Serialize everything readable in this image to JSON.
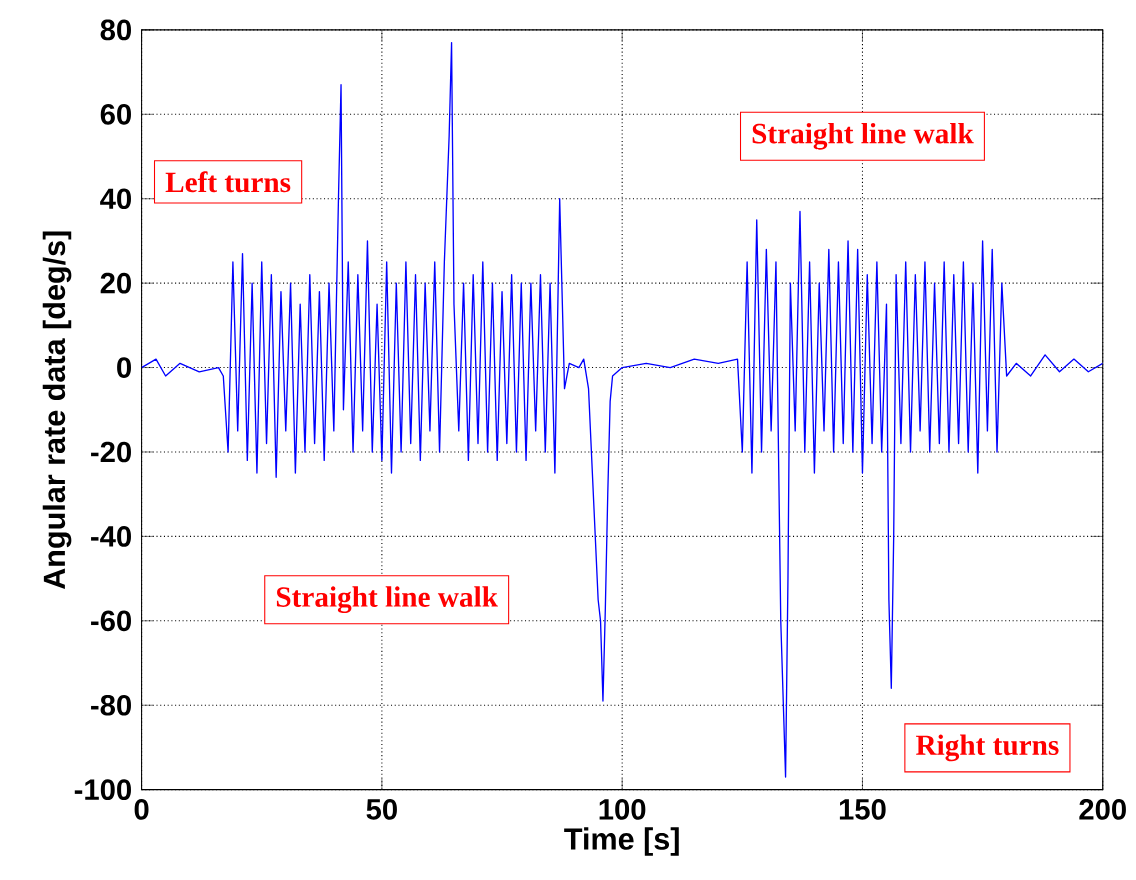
{
  "chart_data": {
    "type": "line",
    "xlabel": "Time [s]",
    "ylabel": "Angular rate data [deg/s]",
    "xlim": [
      0,
      200
    ],
    "ylim": [
      -100,
      80
    ],
    "xticks": [
      0,
      50,
      100,
      150,
      200
    ],
    "yticks": [
      -100,
      -80,
      -60,
      -40,
      -20,
      0,
      20,
      40,
      60,
      80
    ],
    "grid": true,
    "series": [
      {
        "color": "#0000ff",
        "x": [
          0,
          3,
          5,
          8,
          12,
          16,
          17,
          18,
          19,
          20,
          21,
          22,
          23,
          24,
          25,
          26,
          27,
          28,
          29,
          30,
          31,
          32,
          33,
          34,
          35,
          36,
          37,
          38,
          39,
          40,
          41,
          41.5,
          42,
          43,
          44,
          45,
          46,
          47,
          48,
          49,
          50,
          51,
          52,
          53,
          54,
          55,
          56,
          57,
          58,
          59,
          60,
          61,
          62,
          63,
          64,
          64.5,
          65,
          66,
          67,
          68,
          69,
          70,
          71,
          72,
          73,
          74,
          75,
          76,
          77,
          78,
          79,
          80,
          81,
          82,
          83,
          84,
          85,
          86,
          87,
          88,
          89,
          91,
          92,
          93,
          94,
          95,
          95.5,
          96,
          96.5,
          97,
          97.5,
          98,
          100,
          105,
          110,
          115,
          120,
          124,
          125,
          126,
          127,
          128,
          129,
          130,
          131,
          132,
          133,
          134,
          134.5,
          135,
          136,
          137,
          138,
          139,
          140,
          141,
          142,
          143,
          144,
          145,
          146,
          147,
          148,
          149,
          150,
          151,
          152,
          153,
          154,
          155,
          155.5,
          156,
          156.5,
          157,
          158,
          159,
          160,
          161,
          162,
          163,
          164,
          165,
          166,
          167,
          168,
          169,
          170,
          171,
          172,
          173,
          174,
          175,
          176,
          177,
          178,
          179,
          180,
          182,
          185,
          188,
          191,
          194,
          197,
          200
        ],
        "values": [
          0,
          2,
          -2,
          1,
          -1,
          0,
          -2,
          -20,
          25,
          -15,
          27,
          -22,
          20,
          -25,
          25,
          -18,
          22,
          -26,
          18,
          -15,
          20,
          -25,
          15,
          -20,
          22,
          -18,
          18,
          -22,
          20,
          -15,
          42,
          67,
          -10,
          25,
          -20,
          22,
          -15,
          30,
          -20,
          15,
          -22,
          25,
          -25,
          20,
          -20,
          25,
          -18,
          22,
          -22,
          20,
          -15,
          25,
          -20,
          25,
          55,
          77,
          15,
          -15,
          20,
          -22,
          22,
          -18,
          25,
          -20,
          20,
          -22,
          18,
          -18,
          22,
          -20,
          20,
          -22,
          20,
          -15,
          22,
          -20,
          20,
          -25,
          40,
          -5,
          1,
          0,
          2,
          -5,
          -30,
          -55,
          -60,
          -79,
          -57,
          -30,
          -8,
          -2,
          0,
          1,
          0,
          2,
          1,
          2,
          -20,
          25,
          -25,
          35,
          -20,
          28,
          -15,
          25,
          -60,
          -97,
          -50,
          20,
          -15,
          37,
          -20,
          25,
          -25,
          20,
          -15,
          28,
          -20,
          25,
          -18,
          30,
          -20,
          28,
          -25,
          22,
          -18,
          25,
          -20,
          15,
          -55,
          -76,
          -40,
          22,
          -18,
          25,
          -20,
          22,
          -15,
          25,
          -20,
          20,
          -18,
          25,
          -20,
          22,
          -18,
          25,
          -20,
          20,
          -25,
          30,
          -15,
          28,
          -20,
          20,
          -2,
          1,
          -2,
          3,
          -1,
          2,
          -1,
          1
        ]
      }
    ],
    "annotations": [
      "Left turns",
      "Straight line walk",
      "Straight line walk",
      "Right turns"
    ]
  }
}
